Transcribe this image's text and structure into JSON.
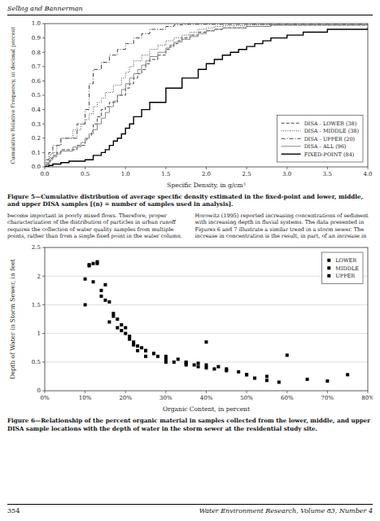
{
  "page": {
    "header": "Selbig and Bannerman",
    "text_left": "become important in poorly mixed flows. Therefore, proper\ncharacterization of the distribution of particles in urban runoff\nrequires the collection of water quality samples from multiple\npoints, rather than from a single fixed point in the water column.",
    "text_right": "Horowitz (1995) reported increasing concentrations of sediment\nwith increasing depth in fluvial systems. The data presented in\nFigures 6 and 7 illustrate a similar trend in a storm sewer. The\nincrease in concentration is the result, in part, of an increase in",
    "footer_left": "354",
    "footer_right": "Water Environment Research, Volume 83, Number 4"
  },
  "chart_data": [
    {
      "type": "line",
      "title": "Figure 5—Cumulative distribution of average specific density estimated in the fixed-point and lower, middle, and upper DISA samples [(n) = number of samples used in analysis].",
      "x_label": "Specific Density, in g/cm³",
      "y_label": "Cumulative Relative Frequency, in decimal percent",
      "xlim": [
        0,
        4
      ],
      "ylim": [
        0,
        1.0
      ],
      "xticks": [
        {
          "value": 0,
          "label": "0.0"
        },
        {
          "value": 0.5,
          "label": "0.5"
        },
        {
          "value": 1,
          "label": "1.0"
        },
        {
          "value": 1.5,
          "label": "1.5"
        },
        {
          "value": 2,
          "label": "2.0"
        },
        {
          "value": 2.5,
          "label": "2.5"
        },
        {
          "value": 3,
          "label": "3.0"
        },
        {
          "value": 3.5,
          "label": "3.5"
        },
        {
          "value": 4,
          "label": "4.0"
        }
      ],
      "yticks": [
        {
          "value": 0,
          "label": "0.0"
        },
        0.1,
        0.2,
        0.3,
        0.4,
        0.5,
        0.6,
        0.7,
        0.8,
        0.9,
        {
          "value": 1.0,
          "label": "1.0"
        }
      ],
      "legend": "lower right",
      "series": [
        {
          "name": "DISA - LOWER (38)",
          "type": "step",
          "line_style": "dashed",
          "color": "#444444",
          "x": [
            0.0,
            0.02,
            0.05,
            0.07,
            0.1,
            0.15,
            0.2,
            0.4,
            0.5,
            0.52,
            0.55,
            0.58,
            0.6,
            0.65,
            0.7,
            0.75,
            0.8,
            0.9,
            1.0,
            1.05,
            1.1,
            1.15,
            1.2,
            1.25,
            1.3,
            1.4,
            1.5,
            1.55,
            1.6,
            1.65,
            1.7,
            1.8,
            1.9,
            2.0,
            2.1,
            2.2,
            2.5,
            2.8,
            3.5,
            4.0
          ],
          "values": [
            0.0,
            0.02,
            0.04,
            0.06,
            0.08,
            0.1,
            0.12,
            0.15,
            0.18,
            0.2,
            0.22,
            0.25,
            0.3,
            0.35,
            0.4,
            0.42,
            0.45,
            0.5,
            0.55,
            0.58,
            0.62,
            0.65,
            0.68,
            0.72,
            0.75,
            0.78,
            0.82,
            0.84,
            0.86,
            0.88,
            0.9,
            0.92,
            0.94,
            0.95,
            0.96,
            0.97,
            0.98,
            0.99,
            0.99,
            0.99
          ]
        },
        {
          "name": "DISA - MIDDLE (38)",
          "type": "step",
          "line_style": "dotted",
          "color": "#444444",
          "x": [
            0.0,
            0.02,
            0.05,
            0.07,
            0.1,
            0.15,
            0.2,
            0.35,
            0.45,
            0.5,
            0.55,
            0.6,
            0.65,
            0.7,
            0.75,
            0.85,
            0.95,
            1.0,
            1.05,
            1.1,
            1.2,
            1.3,
            1.4,
            1.5,
            1.6,
            1.7,
            1.8,
            1.9,
            2.0,
            2.1,
            2.2,
            2.5,
            2.8,
            3.5,
            4.0
          ],
          "values": [
            0.0,
            0.03,
            0.06,
            0.09,
            0.1,
            0.15,
            0.2,
            0.26,
            0.3,
            0.33,
            0.37,
            0.42,
            0.45,
            0.48,
            0.52,
            0.57,
            0.62,
            0.66,
            0.7,
            0.74,
            0.78,
            0.82,
            0.85,
            0.88,
            0.9,
            0.92,
            0.94,
            0.96,
            0.97,
            0.98,
            0.985,
            0.99,
            0.99,
            0.99,
            0.99
          ]
        },
        {
          "name": "DISA - UPPER (20)",
          "type": "step",
          "line_style": "dashdot",
          "color": "#444444",
          "x": [
            0.0,
            0.02,
            0.05,
            0.1,
            0.2,
            0.4,
            0.5,
            0.55,
            0.6,
            0.7,
            0.8,
            0.9,
            1.0,
            1.1,
            1.2,
            1.3,
            1.5,
            1.6,
            1.7,
            2.0,
            2.5,
            4.0
          ],
          "values": [
            0.0,
            0.05,
            0.1,
            0.15,
            0.2,
            0.3,
            0.4,
            0.58,
            0.68,
            0.73,
            0.78,
            0.82,
            0.86,
            0.9,
            0.93,
            0.96,
            0.98,
            0.99,
            0.995,
            0.995,
            0.995,
            0.995
          ]
        },
        {
          "name": "DISA - ALL (96)",
          "type": "step",
          "line_style": "solid",
          "color": "#888888",
          "x": [
            0.0,
            0.02,
            0.05,
            0.07,
            0.1,
            0.15,
            0.2,
            0.35,
            0.45,
            0.5,
            0.55,
            0.6,
            0.65,
            0.7,
            0.75,
            0.8,
            0.85,
            0.9,
            0.95,
            1.0,
            1.05,
            1.1,
            1.15,
            1.2,
            1.25,
            1.3,
            1.4,
            1.5,
            1.55,
            1.6,
            1.7,
            1.8,
            1.9,
            2.0,
            2.1,
            2.2,
            2.5,
            2.8,
            3.0,
            3.5,
            4.0
          ],
          "values": [
            0.0,
            0.01,
            0.03,
            0.05,
            0.07,
            0.09,
            0.11,
            0.14,
            0.17,
            0.2,
            0.23,
            0.26,
            0.3,
            0.34,
            0.38,
            0.42,
            0.46,
            0.5,
            0.54,
            0.58,
            0.62,
            0.65,
            0.68,
            0.71,
            0.74,
            0.77,
            0.8,
            0.83,
            0.85,
            0.87,
            0.89,
            0.91,
            0.93,
            0.95,
            0.96,
            0.97,
            0.98,
            0.99,
            0.99,
            0.99,
            0.99
          ]
        },
        {
          "name": "FIXED-POINT (84)",
          "type": "step",
          "line_style": "solid",
          "color": "#000000",
          "x": [
            0.0,
            0.05,
            0.1,
            0.2,
            0.3,
            0.5,
            0.6,
            0.7,
            0.75,
            0.8,
            0.85,
            0.9,
            0.95,
            1.0,
            1.05,
            1.1,
            1.2,
            1.3,
            1.5,
            1.7,
            1.9,
            2.0,
            2.1,
            2.2,
            2.3,
            2.4,
            2.5,
            2.6,
            2.7,
            2.8,
            3.0,
            3.2,
            3.5,
            4.0
          ],
          "values": [
            0.0,
            0.01,
            0.02,
            0.03,
            0.04,
            0.05,
            0.08,
            0.1,
            0.12,
            0.15,
            0.18,
            0.2,
            0.23,
            0.27,
            0.3,
            0.35,
            0.4,
            0.45,
            0.55,
            0.62,
            0.68,
            0.72,
            0.75,
            0.78,
            0.8,
            0.82,
            0.84,
            0.86,
            0.88,
            0.9,
            0.92,
            0.94,
            0.96,
            0.97
          ]
        }
      ]
    },
    {
      "type": "scatter",
      "title": "Figure 6—Relationship of the percent organic material in samples collected from the lower, middle, and upper DISA sample locations with the depth of water in the storm sewer at the residential study site.",
      "x_label": "Organic Content, in percent",
      "y_label": "Depth of Water in Storm Sewer, in feet",
      "xlim": [
        0,
        0.8
      ],
      "ylim": [
        0,
        2.5
      ],
      "xticks": [
        {
          "value": 0.0,
          "label": "0%"
        },
        {
          "value": 0.1,
          "label": "10%"
        },
        {
          "value": 0.2,
          "label": "20%"
        },
        {
          "value": 0.3,
          "label": "30%"
        },
        {
          "value": 0.4,
          "label": "40%"
        },
        {
          "value": 0.5,
          "label": "50%"
        },
        {
          "value": 0.6,
          "label": "60%"
        },
        {
          "value": 0.7,
          "label": "70%"
        },
        {
          "value": 0.8,
          "label": "80%"
        }
      ],
      "yticks": [
        0,
        0.5,
        1,
        1.5,
        2,
        2.5
      ],
      "grid": "y",
      "legend": "upper right",
      "series": [
        {
          "name": "LOWER",
          "color": "#000000",
          "marker": "square",
          "x": [
            0.1,
            0.11,
            0.12,
            0.13,
            0.14,
            0.15,
            0.16,
            0.17,
            0.18,
            0.19,
            0.2,
            0.21,
            0.22,
            0.23,
            0.25,
            0.3,
            0.35,
            0.4
          ],
          "values": [
            1.95,
            2.2,
            2.22,
            2.25,
            1.75,
            1.85,
            1.55,
            1.35,
            1.25,
            1.15,
            1.1,
            0.95,
            0.8,
            0.7,
            0.6,
            0.5,
            0.45,
            0.85
          ]
        },
        {
          "name": "MIDDLE",
          "color": "#000000",
          "marker": "square",
          "x": [
            0.1,
            0.12,
            0.14,
            0.16,
            0.18,
            0.2,
            0.22,
            0.24,
            0.25,
            0.27,
            0.28,
            0.3,
            0.32,
            0.35,
            0.37,
            0.38,
            0.4,
            0.42,
            0.45,
            0.5,
            0.55,
            0.6
          ],
          "values": [
            1.5,
            1.9,
            1.65,
            1.2,
            1.1,
            1.0,
            0.85,
            0.75,
            0.7,
            0.65,
            0.6,
            0.55,
            0.5,
            0.48,
            0.45,
            0.42,
            0.4,
            0.38,
            0.35,
            0.28,
            0.25,
            0.62
          ]
        },
        {
          "name": "UPPER",
          "color": "#000000",
          "marker": "square",
          "x": [
            0.11,
            0.13,
            0.15,
            0.17,
            0.19,
            0.21,
            0.23,
            0.25,
            0.27,
            0.3,
            0.33,
            0.35,
            0.38,
            0.4,
            0.43,
            0.45,
            0.48,
            0.5,
            0.52,
            0.55,
            0.58,
            0.65,
            0.7,
            0.75
          ],
          "values": [
            2.18,
            2.22,
            1.58,
            1.3,
            1.05,
            0.9,
            0.78,
            0.7,
            0.65,
            0.6,
            0.55,
            0.5,
            0.48,
            0.45,
            0.42,
            0.38,
            0.33,
            0.28,
            0.22,
            0.18,
            0.15,
            0.2,
            0.17,
            0.28
          ]
        }
      ]
    }
  ]
}
